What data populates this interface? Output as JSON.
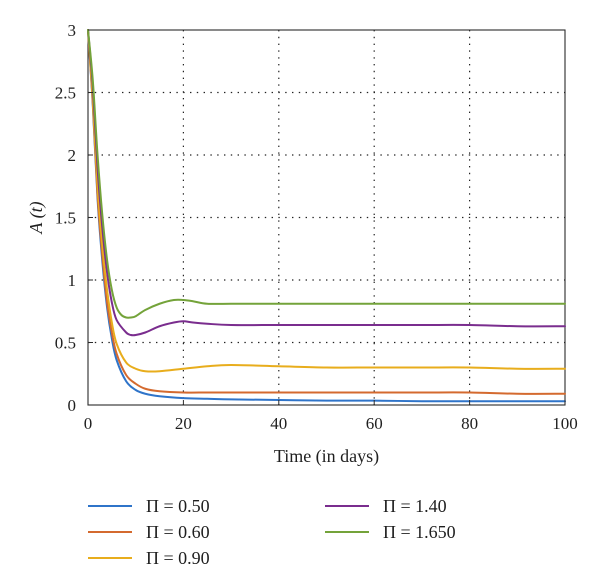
{
  "chart_data": {
    "type": "line",
    "title": "",
    "xlabel": "Time (in days)",
    "ylabel": "A (t)",
    "xlim": [
      0,
      100
    ],
    "ylim": [
      0,
      3
    ],
    "x_ticks": [
      0,
      20,
      40,
      60,
      80,
      100
    ],
    "y_ticks": [
      0,
      0.5,
      1,
      1.5,
      2,
      2.5,
      3
    ],
    "x_tick_labels": [
      "0",
      "20",
      "40",
      "60",
      "80",
      "100"
    ],
    "y_tick_labels": [
      "0",
      "0.5",
      "1",
      "1.5",
      "2",
      "2.5",
      "3"
    ],
    "grid": true,
    "legend_position": "bottom",
    "series": [
      {
        "name": "Π = 0.50",
        "color": "#2f74c9",
        "x": [
          0,
          1,
          2,
          3,
          4,
          5,
          6,
          8,
          10,
          12,
          15,
          20,
          25,
          30,
          40,
          50,
          60,
          70,
          80,
          90,
          100
        ],
        "y": [
          3,
          2.4,
          1.65,
          1.15,
          0.78,
          0.53,
          0.36,
          0.19,
          0.12,
          0.09,
          0.07,
          0.055,
          0.05,
          0.045,
          0.04,
          0.035,
          0.035,
          0.03,
          0.03,
          0.03,
          0.03
        ]
      },
      {
        "name": "Π = 0.60",
        "color": "#d46a2f",
        "x": [
          0,
          1,
          2,
          3,
          4,
          5,
          6,
          8,
          10,
          12,
          15,
          20,
          25,
          30,
          40,
          50,
          60,
          70,
          80,
          90,
          100
        ],
        "y": [
          3,
          2.42,
          1.68,
          1.2,
          0.82,
          0.58,
          0.41,
          0.24,
          0.17,
          0.13,
          0.11,
          0.1,
          0.1,
          0.1,
          0.1,
          0.1,
          0.1,
          0.1,
          0.1,
          0.09,
          0.09
        ]
      },
      {
        "name": "Π = 0.90",
        "color": "#e8ad1c",
        "x": [
          0,
          1,
          2,
          3,
          4,
          5,
          6,
          8,
          10,
          12,
          15,
          20,
          25,
          30,
          40,
          50,
          60,
          70,
          80,
          90,
          100
        ],
        "y": [
          3,
          2.45,
          1.75,
          1.28,
          0.92,
          0.66,
          0.49,
          0.34,
          0.29,
          0.27,
          0.27,
          0.29,
          0.31,
          0.32,
          0.31,
          0.3,
          0.3,
          0.3,
          0.3,
          0.29,
          0.29
        ]
      },
      {
        "name": "Π = 1.40",
        "color": "#7a2d8e",
        "x": [
          0,
          1,
          2,
          3,
          4,
          5,
          6,
          8,
          9,
          10,
          12,
          15,
          18,
          20,
          22,
          25,
          30,
          40,
          50,
          60,
          70,
          80,
          90,
          100
        ],
        "y": [
          3,
          2.55,
          1.9,
          1.42,
          1.06,
          0.82,
          0.68,
          0.58,
          0.56,
          0.56,
          0.58,
          0.63,
          0.66,
          0.67,
          0.66,
          0.65,
          0.64,
          0.64,
          0.64,
          0.64,
          0.64,
          0.64,
          0.63,
          0.63
        ]
      },
      {
        "name": "Π = 1.650",
        "color": "#74a33a",
        "x": [
          0,
          1,
          2,
          3,
          4,
          5,
          6,
          7,
          8,
          9,
          10,
          12,
          15,
          18,
          20,
          22,
          25,
          30,
          40,
          50,
          60,
          70,
          80,
          90,
          100
        ],
        "y": [
          3,
          2.6,
          2.0,
          1.52,
          1.16,
          0.92,
          0.78,
          0.72,
          0.7,
          0.7,
          0.71,
          0.76,
          0.81,
          0.84,
          0.84,
          0.83,
          0.81,
          0.81,
          0.81,
          0.81,
          0.81,
          0.81,
          0.81,
          0.81,
          0.81
        ]
      }
    ]
  }
}
